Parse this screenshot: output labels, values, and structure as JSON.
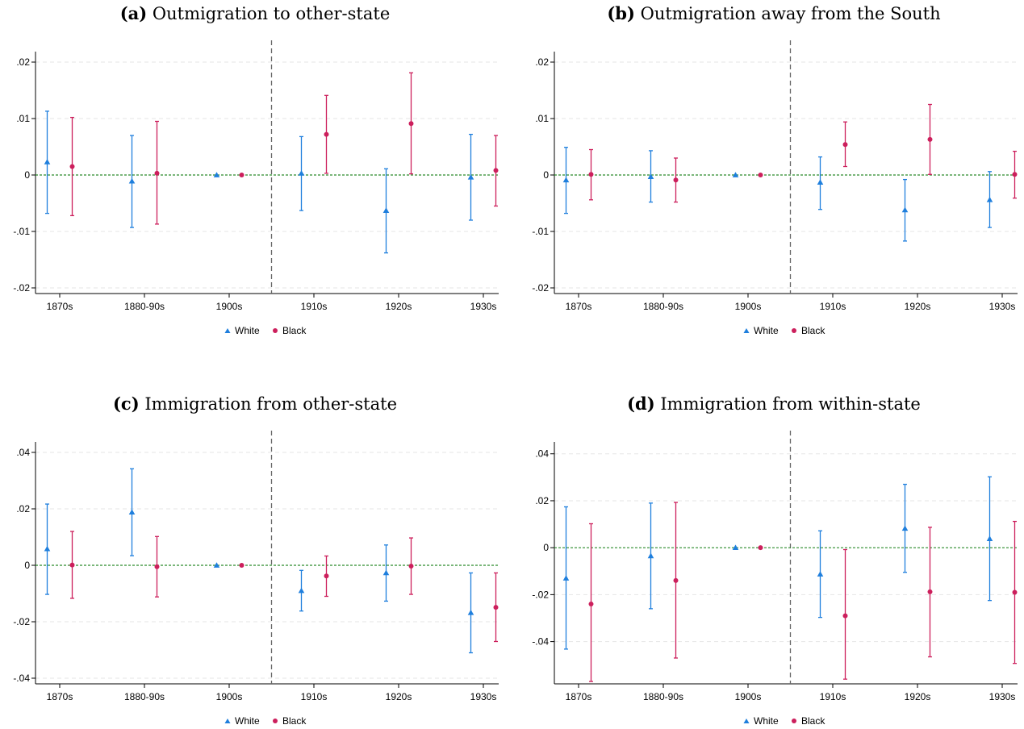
{
  "colors": {
    "white_series": "#1f7fdd",
    "black_series": "#cc1f5c",
    "zero_line": "#2a8a2a",
    "event_line": "#666666",
    "grid": "#e6e6e6"
  },
  "chart_data": [
    {
      "id": "a",
      "type": "scatter",
      "title_letter": "(a)",
      "title_text": "Outmigration to other-state",
      "categories": [
        "1870s",
        "1880-90s",
        "1900s",
        "1910s",
        "1920s",
        "1930s"
      ],
      "yticks": [
        -0.02,
        -0.01,
        0,
        0.01,
        0.02
      ],
      "ytick_labels": [
        "-.02",
        "-.01",
        "0",
        ".01",
        ".02"
      ],
      "ylim": [
        -0.021,
        0.021
      ],
      "reference_line_after": "1900s",
      "legend": [
        "White",
        "Black"
      ],
      "legend_position": "bottom-center",
      "grid": true,
      "series": [
        {
          "name": "White",
          "marker": "triangle",
          "values": [
            0.0023,
            -0.0011,
            0.0,
            0.0003,
            -0.0063,
            -0.0004
          ],
          "ci_low": [
            -0.0068,
            -0.0093,
            0.0,
            -0.0063,
            -0.0138,
            -0.008
          ],
          "ci_high": [
            0.0113,
            0.007,
            0.0,
            0.0068,
            0.0011,
            0.0072
          ]
        },
        {
          "name": "Black",
          "marker": "circle",
          "values": [
            0.0015,
            0.0003,
            0.0,
            0.0072,
            0.0091,
            0.0008
          ],
          "ci_low": [
            -0.0072,
            -0.0087,
            0.0,
            0.0003,
            0.0002,
            -0.0055
          ],
          "ci_high": [
            0.0102,
            0.0095,
            0.0,
            0.0141,
            0.0181,
            0.007
          ]
        }
      ]
    },
    {
      "id": "b",
      "type": "scatter",
      "title_letter": "(b)",
      "title_text": "Outmigration away from the South",
      "categories": [
        "1870s",
        "1880-90s",
        "1900s",
        "1910s",
        "1920s",
        "1930s"
      ],
      "yticks": [
        -0.02,
        -0.01,
        0,
        0.01,
        0.02
      ],
      "ytick_labels": [
        "-.02",
        "-.01",
        "0",
        ".01",
        ".02"
      ],
      "ylim": [
        -0.021,
        0.021
      ],
      "reference_line_after": "1900s",
      "legend": [
        "White",
        "Black"
      ],
      "legend_position": "bottom-center",
      "grid": true,
      "series": [
        {
          "name": "White",
          "marker": "triangle",
          "values": [
            -0.0009,
            -0.0003,
            0.0,
            -0.0013,
            -0.0062,
            -0.0044
          ],
          "ci_low": [
            -0.0068,
            -0.0048,
            0.0,
            -0.0061,
            -0.0117,
            -0.0093
          ],
          "ci_high": [
            0.0049,
            0.0043,
            0.0,
            0.0032,
            -0.0008,
            0.0006
          ]
        },
        {
          "name": "Black",
          "marker": "circle",
          "values": [
            0.0001,
            -0.0009,
            0.0,
            0.0054,
            0.0063,
            0.0001
          ],
          "ci_low": [
            -0.0044,
            -0.0048,
            0.0,
            0.0015,
            0.0001,
            -0.0041
          ],
          "ci_high": [
            0.0045,
            0.003,
            0.0,
            0.0094,
            0.0125,
            0.0042
          ]
        }
      ]
    },
    {
      "id": "c",
      "type": "scatter",
      "title_letter": "(c)",
      "title_text": "Immigration from other-state",
      "categories": [
        "1870s",
        "1880-90s",
        "1900s",
        "1910s",
        "1920s",
        "1930s"
      ],
      "yticks": [
        -0.04,
        -0.02,
        0,
        0.02,
        0.04
      ],
      "ytick_labels": [
        "-.04",
        "-.02",
        "0",
        ".02",
        ".04"
      ],
      "ylim": [
        -0.042,
        0.042
      ],
      "reference_line_after": "1900s",
      "legend": [
        "White",
        "Black"
      ],
      "legend_position": "bottom-center",
      "grid": true,
      "series": [
        {
          "name": "White",
          "marker": "triangle",
          "values": [
            0.0058,
            0.0188,
            0.0,
            -0.009,
            -0.0027,
            -0.0168
          ],
          "ci_low": [
            -0.0103,
            0.0034,
            0.0,
            -0.0162,
            -0.0127,
            -0.031
          ],
          "ci_high": [
            0.0217,
            0.0342,
            0.0,
            -0.0018,
            0.0072,
            -0.0027
          ]
        },
        {
          "name": "Black",
          "marker": "circle",
          "values": [
            0.0001,
            -0.0005,
            0.0,
            -0.0038,
            -0.0003,
            -0.0149
          ],
          "ci_low": [
            -0.0117,
            -0.0112,
            0.0,
            -0.011,
            -0.0103,
            -0.027
          ],
          "ci_high": [
            0.012,
            0.0102,
            0.0,
            0.0033,
            0.0097,
            -0.0027
          ]
        }
      ]
    },
    {
      "id": "d",
      "type": "scatter",
      "title_letter": "(d)",
      "title_text": "Immigration from within-state",
      "categories": [
        "1870s",
        "1880-90s",
        "1900s",
        "1910s",
        "1920s",
        "1930s"
      ],
      "yticks": [
        -0.04,
        -0.02,
        0,
        0.02,
        0.04
      ],
      "ytick_labels": [
        "-.04",
        "-.02",
        "0",
        ".02",
        ".04"
      ],
      "ylim": [
        -0.058,
        0.043
      ],
      "reference_line_after": "1900s",
      "legend": [
        "White",
        "Black"
      ],
      "legend_position": "bottom-center",
      "grid": true,
      "series": [
        {
          "name": "White",
          "marker": "triangle",
          "values": [
            -0.013,
            -0.0035,
            0.0,
            -0.0113,
            0.0082,
            0.0038
          ],
          "ci_low": [
            -0.0432,
            -0.026,
            0.0,
            -0.0297,
            -0.0105,
            -0.0225
          ],
          "ci_high": [
            0.0174,
            0.019,
            0.0,
            0.0072,
            0.027,
            0.0302
          ]
        },
        {
          "name": "Black",
          "marker": "circle",
          "values": [
            -0.024,
            -0.014,
            0.0,
            -0.029,
            -0.0188,
            -0.019
          ],
          "ci_low": [
            -0.057,
            -0.047,
            0.0,
            -0.056,
            -0.0465,
            -0.0493
          ],
          "ci_high": [
            0.0102,
            0.0193,
            0.0,
            -0.0008,
            0.0087,
            0.0112
          ]
        }
      ]
    }
  ]
}
